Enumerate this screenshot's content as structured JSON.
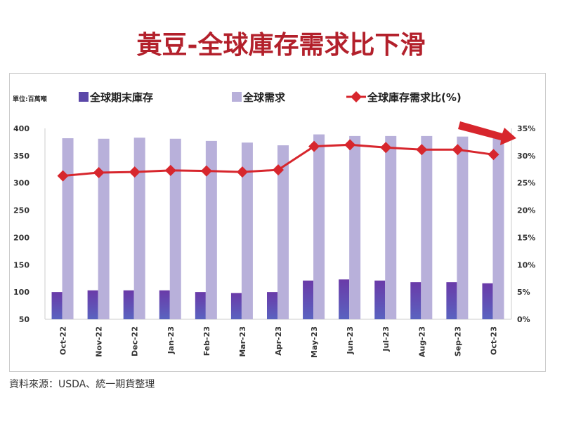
{
  "title": "黃豆-全球庫存需求比下滑",
  "source": "資料來源：USDA、統一期貨整理",
  "colors": {
    "stock": "#5b47a8",
    "demand": "#b8b0da",
    "ratio": "#d7262d",
    "title": "#b3202b"
  },
  "chart_data": {
    "type": "bar",
    "title": "黃豆-全球庫存需求比下滑",
    "unit_label": "單位:百萬噸",
    "categories": [
      "Oct-22",
      "Nov-22",
      "Dec-22",
      "Jan-23",
      "Feb-23",
      "Mar-23",
      "Apr-23",
      "May-23",
      "Jun-23",
      "Jul-23",
      "Aug-23",
      "Sep-23",
      "Oct-23"
    ],
    "series": [
      {
        "name": "全球期末庫存",
        "type": "bar",
        "axis": "left",
        "values": [
          100,
          103,
          103,
          103,
          100,
          98,
          100,
          121,
          123,
          121,
          118,
          118,
          116
        ]
      },
      {
        "name": "全球需求",
        "type": "bar",
        "axis": "left",
        "values": [
          382,
          381,
          383,
          381,
          377,
          374,
          369,
          389,
          386,
          386,
          386,
          385,
          383
        ]
      },
      {
        "name": "全球庫存需求比(%)",
        "type": "line",
        "axis": "right",
        "values": [
          26.3,
          26.9,
          27.0,
          27.3,
          27.2,
          27.0,
          27.4,
          31.7,
          32.0,
          31.5,
          31.1,
          31.1,
          30.2
        ]
      }
    ],
    "left_ticks": [
      "400",
      "350",
      "300",
      "250",
      "200",
      "150",
      "100",
      "50"
    ],
    "right_ticks": [
      "35%",
      "30%",
      "25%",
      "20%",
      "15%",
      "10%",
      "5%",
      "0%"
    ],
    "ylim": [
      50,
      400
    ],
    "y2lim": [
      0,
      35
    ],
    "annotation": "downward trend arrow",
    "legend": "top"
  }
}
